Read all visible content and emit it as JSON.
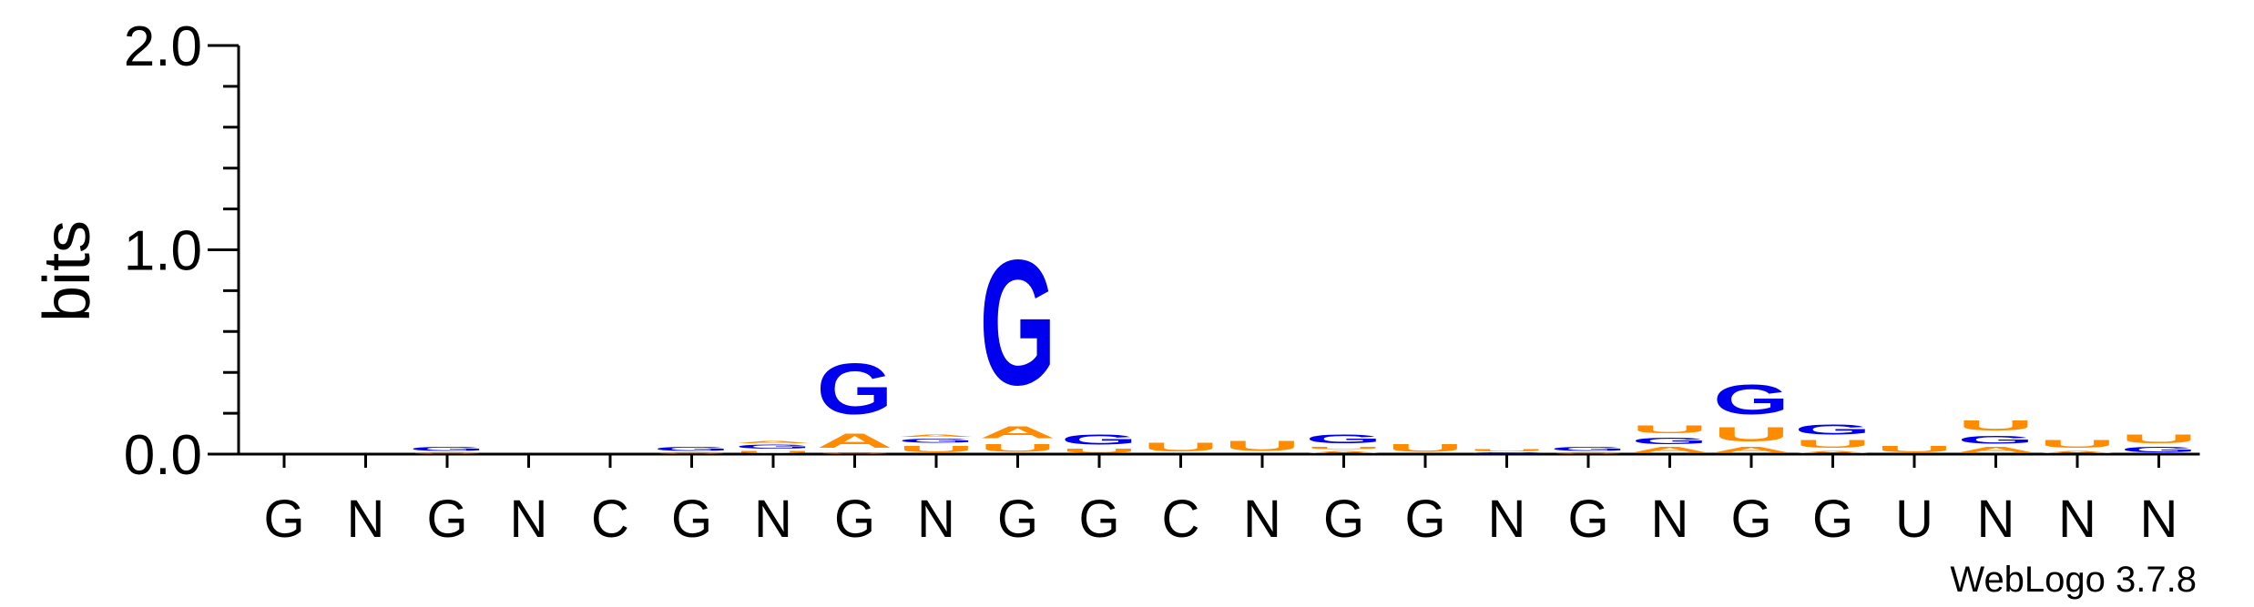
{
  "chart_data": {
    "type": "sequence-logo",
    "ylabel": "bits",
    "ylim": [
      0,
      2.0
    ],
    "yticks": [
      {
        "value": 0.0,
        "label": "0.0"
      },
      {
        "value": 1.0,
        "label": "1.0"
      },
      {
        "value": 2.0,
        "label": "2.0"
      }
    ],
    "minor_tick_step": 0.2,
    "consensus": [
      "G",
      "N",
      "G",
      "N",
      "C",
      "G",
      "N",
      "G",
      "N",
      "G",
      "G",
      "C",
      "N",
      "G",
      "G",
      "N",
      "G",
      "N",
      "G",
      "G",
      "U",
      "N",
      "N",
      "N"
    ],
    "positions": [
      {
        "stack": []
      },
      {
        "stack": []
      },
      {
        "stack": [
          {
            "letter": "U",
            "bits": 0.01
          },
          {
            "letter": "G",
            "bits": 0.03
          }
        ]
      },
      {
        "stack": []
      },
      {
        "stack": []
      },
      {
        "stack": [
          {
            "letter": "U",
            "bits": 0.01
          },
          {
            "letter": "G",
            "bits": 0.03
          }
        ]
      },
      {
        "stack": [
          {
            "letter": "U",
            "bits": 0.02
          },
          {
            "letter": "G",
            "bits": 0.03
          },
          {
            "letter": "A",
            "bits": 0.02
          }
        ]
      },
      {
        "stack": [
          {
            "letter": "U",
            "bits": 0.01
          },
          {
            "letter": "A",
            "bits": 0.11
          },
          {
            "letter": "G",
            "bits": 0.4
          }
        ]
      },
      {
        "stack": [
          {
            "letter": "U",
            "bits": 0.05
          },
          {
            "letter": "G",
            "bits": 0.03
          },
          {
            "letter": "A",
            "bits": 0.02
          }
        ]
      },
      {
        "stack": [
          {
            "letter": "U",
            "bits": 0.06
          },
          {
            "letter": "A",
            "bits": 0.09
          },
          {
            "letter": "G",
            "bits": 0.98
          }
        ]
      },
      {
        "stack": [
          {
            "letter": "U",
            "bits": 0.03
          },
          {
            "letter": "G",
            "bits": 0.08
          }
        ]
      },
      {
        "stack": [
          {
            "letter": "U",
            "bits": 0.07
          }
        ]
      },
      {
        "stack": [
          {
            "letter": "U",
            "bits": 0.08
          }
        ]
      },
      {
        "stack": [
          {
            "letter": "A",
            "bits": 0.02
          },
          {
            "letter": "U",
            "bits": 0.02
          },
          {
            "letter": "G",
            "bits": 0.07
          }
        ]
      },
      {
        "stack": [
          {
            "letter": "U",
            "bits": 0.06
          }
        ]
      },
      {
        "stack": [
          {
            "letter": "C",
            "bits": 0.01
          },
          {
            "letter": "U",
            "bits": 0.02
          }
        ]
      },
      {
        "stack": [
          {
            "letter": "U",
            "bits": 0.01
          },
          {
            "letter": "G",
            "bits": 0.03
          }
        ]
      },
      {
        "stack": [
          {
            "letter": "A",
            "bits": 0.04
          },
          {
            "letter": "G",
            "bits": 0.05
          },
          {
            "letter": "U",
            "bits": 0.06
          }
        ]
      },
      {
        "stack": [
          {
            "letter": "A",
            "bits": 0.04
          },
          {
            "letter": "U",
            "bits": 0.11
          },
          {
            "letter": "G",
            "bits": 0.23
          }
        ]
      },
      {
        "stack": [
          {
            "letter": "A",
            "bits": 0.02
          },
          {
            "letter": "U",
            "bits": 0.06
          },
          {
            "letter": "G",
            "bits": 0.08
          }
        ]
      },
      {
        "stack": [
          {
            "letter": "U",
            "bits": 0.05
          }
        ]
      },
      {
        "stack": [
          {
            "letter": "A",
            "bits": 0.04
          },
          {
            "letter": "G",
            "bits": 0.06
          },
          {
            "letter": "U",
            "bits": 0.08
          }
        ]
      },
      {
        "stack": [
          {
            "letter": "A",
            "bits": 0.02
          },
          {
            "letter": "U",
            "bits": 0.06
          }
        ]
      },
      {
        "stack": [
          {
            "letter": "G",
            "bits": 0.04
          },
          {
            "letter": "U",
            "bits": 0.07
          }
        ]
      }
    ],
    "colors": {
      "G": "#0000ee",
      "U": "#ff8c00",
      "A": "#ff8c00",
      "C": "#0000ee",
      "axis": "#000000"
    },
    "footer": "WebLogo 3.7.8"
  }
}
